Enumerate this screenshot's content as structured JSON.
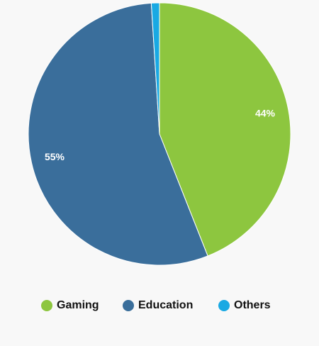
{
  "chart_data": {
    "type": "pie",
    "categories": [
      "Gaming",
      "Education",
      "Others"
    ],
    "values": [
      44,
      55,
      1
    ],
    "value_labels": [
      "44%",
      "55%",
      null
    ],
    "colors": [
      "#8dc63f",
      "#3a6e9b",
      "#19a9e3"
    ],
    "legend": "bottom"
  }
}
